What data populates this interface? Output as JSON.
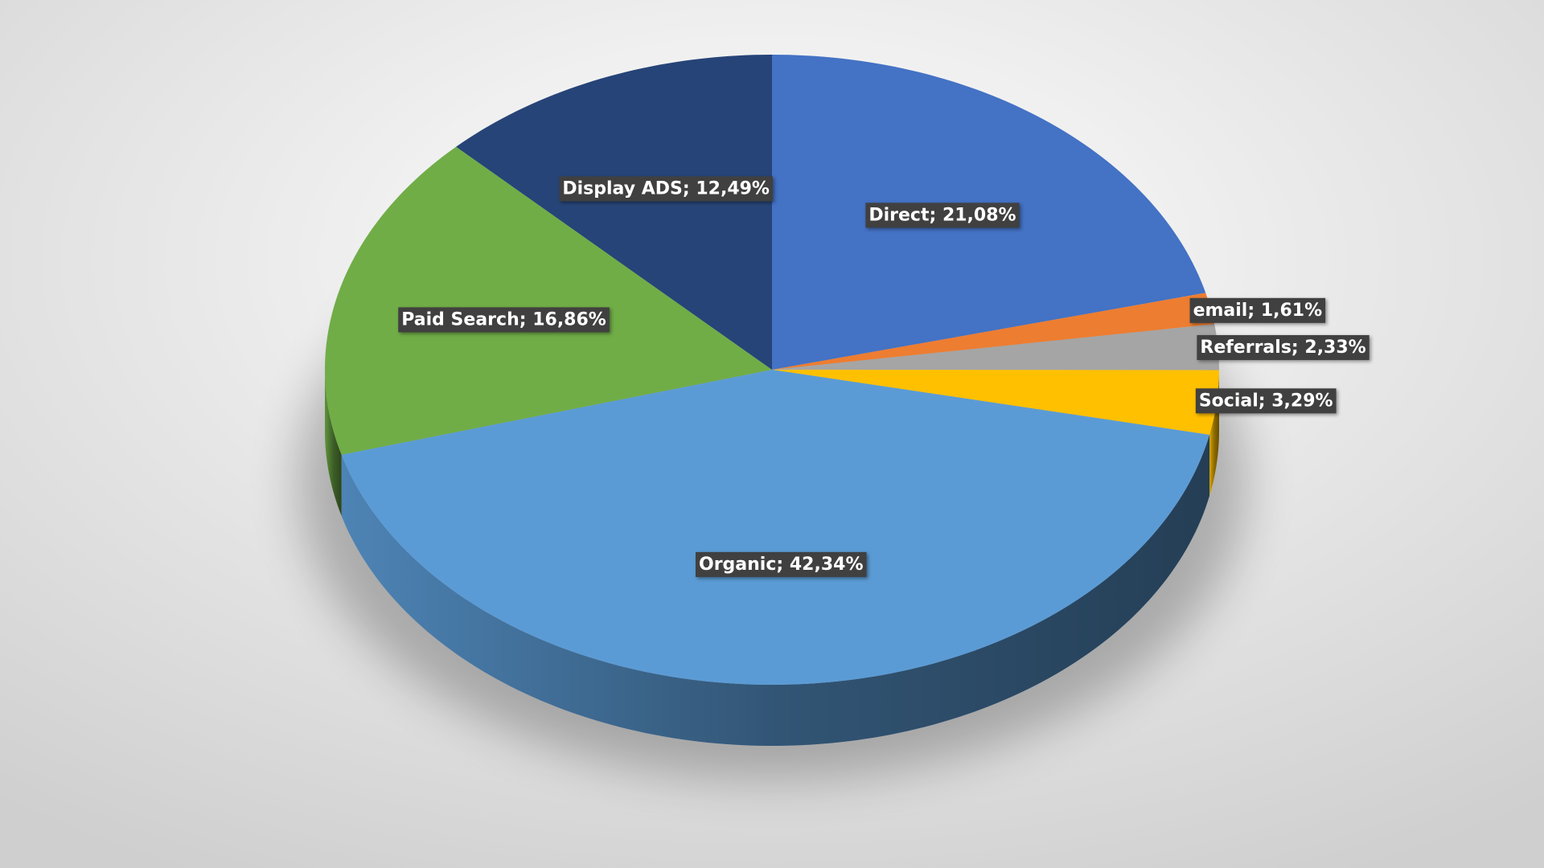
{
  "chart_data": {
    "type": "pie",
    "categories": [
      "Direct",
      "email",
      "Referrals",
      "Social",
      "Organic",
      "Paid Search",
      "Display ADS"
    ],
    "values": [
      21.08,
      1.61,
      2.33,
      3.29,
      42.34,
      16.86,
      12.49
    ],
    "value_labels": [
      "21,08%",
      "1,61%",
      "2,33%",
      "3,29%",
      "42,34%",
      "16,86%",
      "12,49%"
    ],
    "label_separator": "; ",
    "colors": [
      "#4472c4",
      "#ed7d31",
      "#a5a5a5",
      "#ffc000",
      "#5b9bd5",
      "#70ad47",
      "#264478"
    ]
  }
}
